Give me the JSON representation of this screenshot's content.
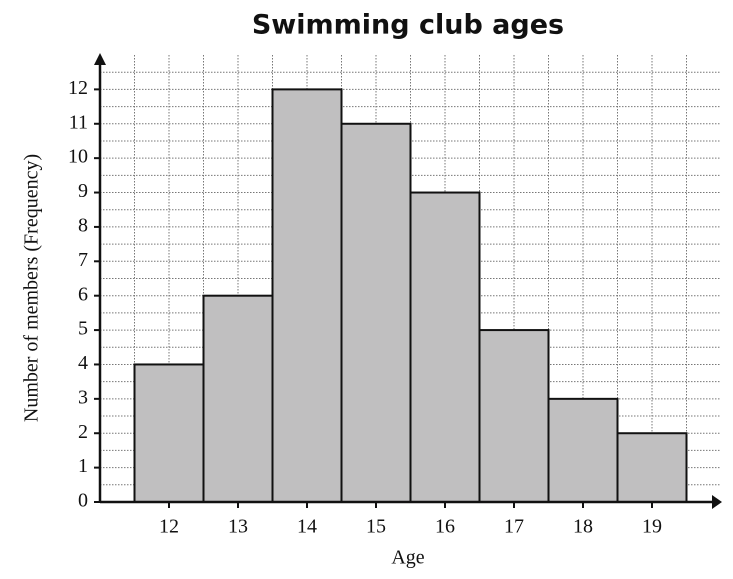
{
  "chart_data": {
    "type": "bar",
    "title": "Swimming club ages",
    "x_label": "Age",
    "y_label": "Number of members (Frequency)",
    "categories": [
      "12",
      "13",
      "14",
      "15",
      "16",
      "17",
      "18",
      "19"
    ],
    "values": [
      4,
      6,
      12,
      11,
      9,
      5,
      3,
      2
    ],
    "color": "#c0bfc0",
    "ylim": [
      0,
      13
    ],
    "yticks": [
      0,
      1,
      2,
      3,
      4,
      5,
      6,
      7,
      8,
      9,
      10,
      11,
      12
    ],
    "grid": true
  }
}
